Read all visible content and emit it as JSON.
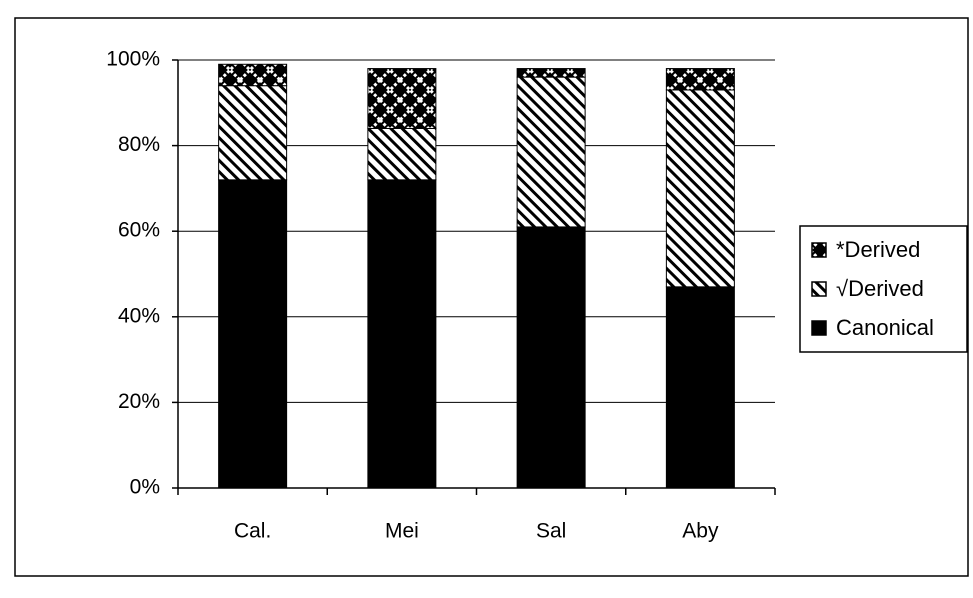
{
  "chart_data": {
    "type": "stacked-bar",
    "categories": [
      "Cal.",
      "Mei",
      "Sal",
      "Aby"
    ],
    "series": [
      {
        "name": "Canonical",
        "color": "#000000",
        "pattern": "solid",
        "values": [
          72,
          72,
          61,
          47
        ]
      },
      {
        "name": "√Derived",
        "color": "#ffffff",
        "pattern": "diagonal",
        "values": [
          22,
          12,
          35,
          46
        ]
      },
      {
        "name": "*Derived",
        "color": "#000000",
        "pattern": "crosshatch",
        "values": [
          5,
          14,
          2,
          5
        ]
      }
    ],
    "ylim": [
      0,
      100
    ],
    "yticks": [
      {
        "value": 0,
        "label": "0%"
      },
      {
        "value": 20,
        "label": "20%"
      },
      {
        "value": 40,
        "label": "40%"
      },
      {
        "value": 60,
        "label": "60%"
      },
      {
        "value": 80,
        "label": "80%"
      },
      {
        "value": 100,
        "label": "100%"
      }
    ],
    "grid": true,
    "legend": "right"
  }
}
